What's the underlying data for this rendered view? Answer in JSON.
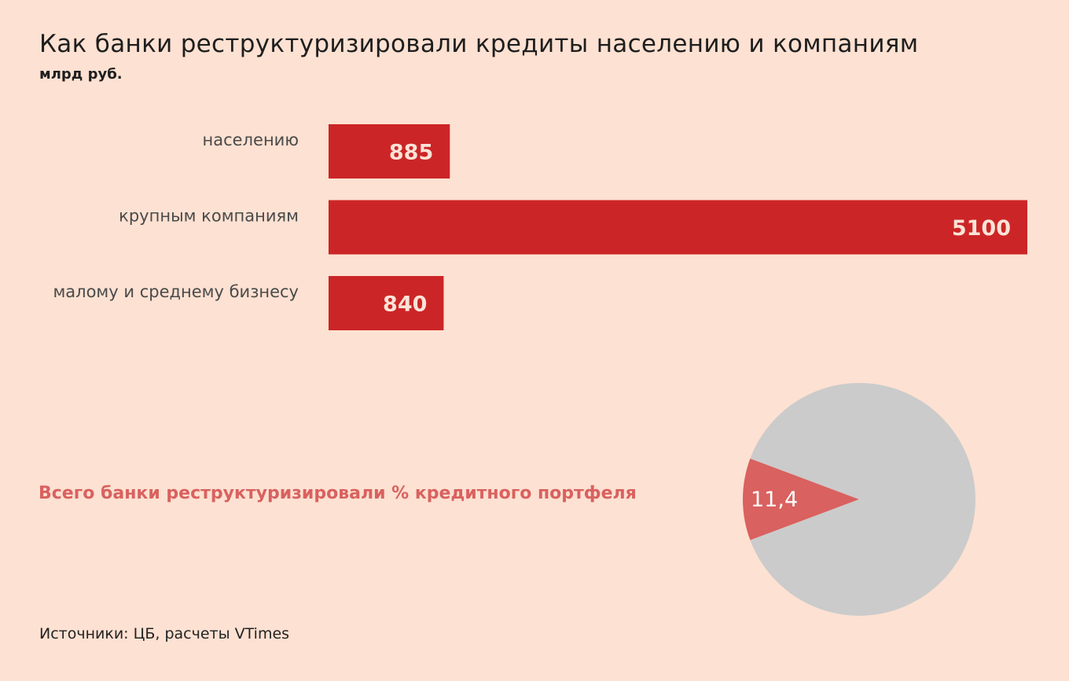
{
  "title": "Как банки реструктуризировали кредиты населению и компаниям",
  "subtitle": "млрд руб.",
  "colors": {
    "background": "#fde1d2",
    "bar": "#cc2527",
    "bar_label": "#fbe3d7",
    "pie_highlight": "#d9615f",
    "pie_rest": "#cbcbcb"
  },
  "chart_data": [
    {
      "type": "bar",
      "orientation": "horizontal",
      "categories": [
        "населению",
        "крупным компаниям",
        "малому и среднему бизнесу"
      ],
      "values": [
        885,
        5100,
        840
      ],
      "data_labels": [
        "885",
        "5100",
        "840"
      ],
      "xlim": [
        0,
        5100
      ],
      "grid": false
    },
    {
      "type": "pie",
      "title": "Всего банки реструктуризировали % кредитного портфеля",
      "slices": [
        {
          "value": 11.4,
          "label": "11,4"
        },
        {
          "value": 88.6,
          "label": ""
        }
      ]
    }
  ],
  "source": "Источники: ЦБ, расчеты VTimes"
}
